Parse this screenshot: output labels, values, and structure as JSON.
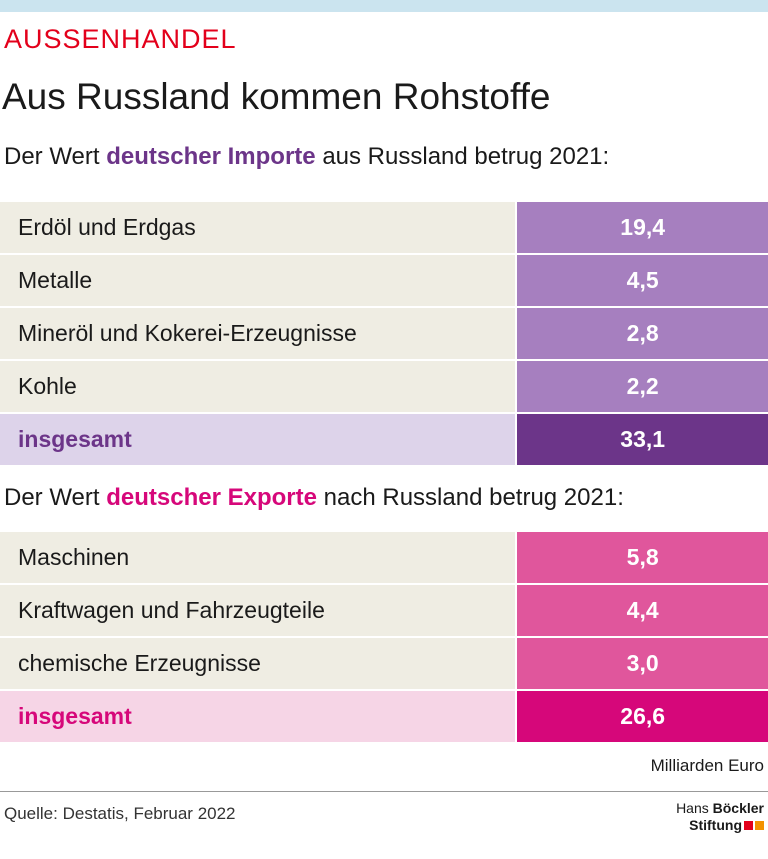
{
  "header": {
    "kicker": "AUSSENHANDEL",
    "title": "Aus Russland kommen Rohstoffe"
  },
  "imports": {
    "intro_before": "Der Wert",
    "intro_highlight": "deutscher Importe",
    "intro_after": "aus Russland betrug 2021:",
    "rows": [
      [
        "Erdöl und Erdgas",
        "19,4"
      ],
      [
        "Metalle",
        "4,5"
      ],
      [
        "Mineröl und Kokerei-Erzeugnisse",
        "2,8"
      ],
      [
        "Kohle",
        "2,2"
      ]
    ],
    "total": [
      "insgesamt",
      "33,1"
    ]
  },
  "exports": {
    "intro_before": "Der Wert",
    "intro_highlight": "deutscher Exporte",
    "intro_after": "nach Russland betrug 2021:",
    "rows": [
      [
        "Maschinen",
        "5,8"
      ],
      [
        "Kraftwagen und Fahrzeugteile",
        "4,4"
      ],
      [
        "chemische Erzeugnisse",
        "3,0"
      ]
    ],
    "total": [
      "insgesamt",
      "26,6"
    ]
  },
  "unit": "Milliarden Euro",
  "source": "Quelle: Destatis, Februar 2022",
  "logo": {
    "line1a": "Hans",
    "line1b": "Böckler",
    "line2": "Stiftung"
  }
}
